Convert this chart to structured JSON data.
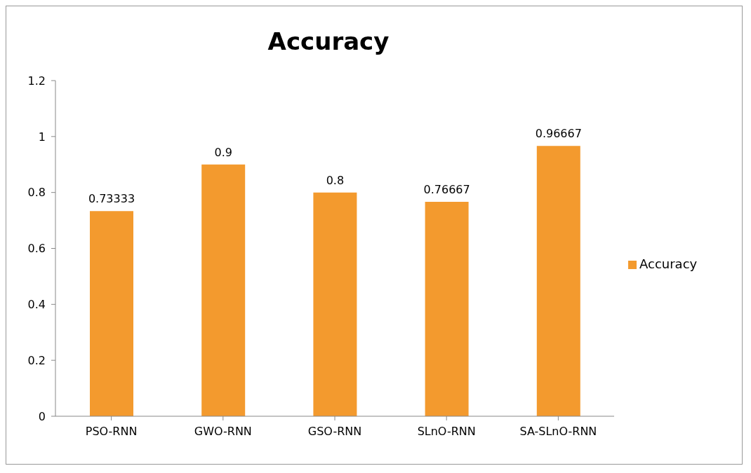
{
  "chart_data": {
    "type": "bar",
    "title": "Accuracy",
    "categories": [
      "PSO-RNN",
      "GWO-RNN",
      "GSO-RNN",
      "SLnO-RNN",
      "SA-SLnO-RNN"
    ],
    "series": [
      {
        "name": "Accuracy",
        "color": "#f39a2e",
        "values": [
          0.73333,
          0.9,
          0.8,
          0.76667,
          0.96667
        ]
      }
    ],
    "ylim": [
      0,
      1.2
    ],
    "yticks": [
      0,
      0.2,
      0.4,
      0.6,
      0.8,
      1,
      1.2
    ],
    "grid": false,
    "legend": "right",
    "data_labels": true
  }
}
